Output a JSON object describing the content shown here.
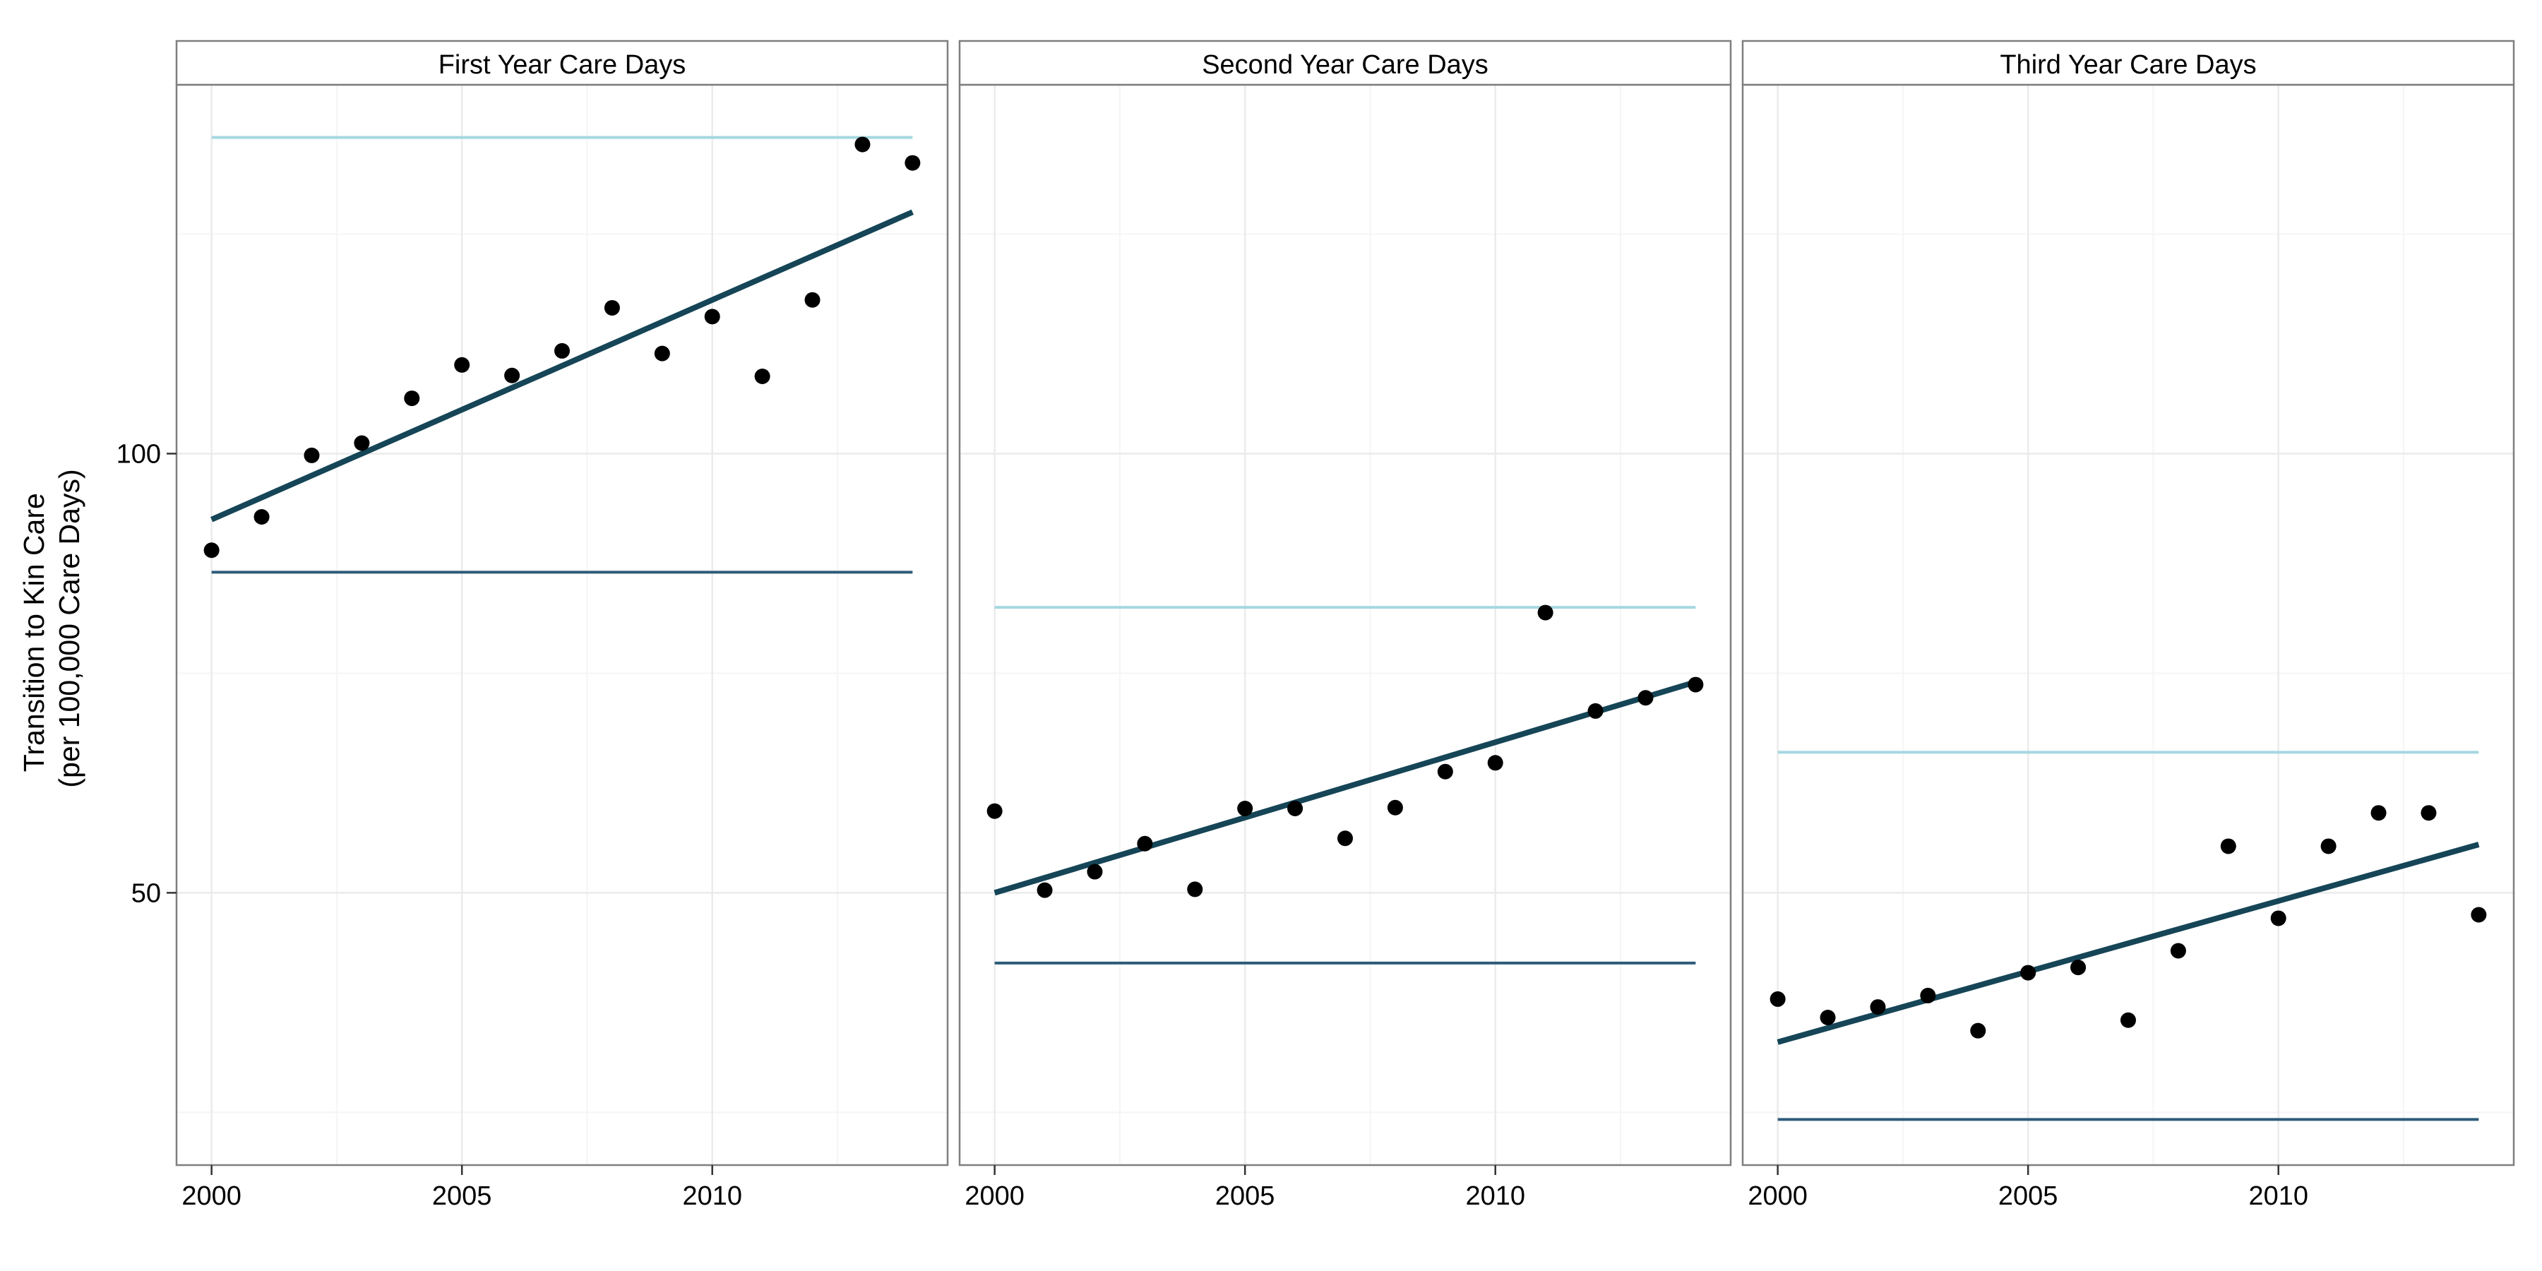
{
  "chart_data": {
    "type": "scatter",
    "ylabel_line1": "Transition to Kin Care",
    "ylabel_line2": "(per 100,000 Care Days)",
    "xlabel": "",
    "xlim": [
      1999.3,
      2014.7
    ],
    "ylim": [
      19,
      142
    ],
    "x_ticks": [
      2000,
      2005,
      2010
    ],
    "x_tick_labels": [
      "2000",
      "2005",
      "2010"
    ],
    "y_ticks": [
      50,
      100
    ],
    "y_tick_labels": [
      "50",
      "100"
    ],
    "grid": true,
    "colors": {
      "points": "#000000",
      "trend": "#154557",
      "upper_ref": "#A6D8E0",
      "lower_ref": "#2E5C7A",
      "grid": "#EBEBEB",
      "strip_bg": "#FFFFFF",
      "panel_border": "#7F7F7F"
    },
    "panels": [
      {
        "title": "First Year Care Days",
        "x": [
          2000,
          2001,
          2002,
          2003,
          2004,
          2005,
          2006,
          2007,
          2008,
          2009,
          2010,
          2011,
          2012,
          2013,
          2014
        ],
        "y": [
          89,
          92.8,
          99.8,
          101.2,
          106.3,
          110.1,
          108.9,
          111.7,
          116.6,
          111.4,
          115.6,
          108.8,
          117.5,
          135.2,
          133.1
        ],
        "trend": {
          "x": [
            2000,
            2014
          ],
          "y": [
            92.5,
            127.5
          ]
        },
        "upper_ref": {
          "x": [
            2000,
            2014
          ],
          "y": 136
        },
        "lower_ref": {
          "x": [
            2000,
            2014
          ],
          "y": 86.5
        }
      },
      {
        "title": "Second Year Care Days",
        "x": [
          2000,
          2001,
          2002,
          2003,
          2004,
          2005,
          2006,
          2007,
          2008,
          2009,
          2010,
          2011,
          2012,
          2013,
          2014
        ],
        "y": [
          59.3,
          50.3,
          52.4,
          55.6,
          50.4,
          59.6,
          59.6,
          56.2,
          59.7,
          63.8,
          64.8,
          81.9,
          70.7,
          72.2,
          73.7
        ],
        "trend": {
          "x": [
            2000,
            2014
          ],
          "y": [
            50,
            74
          ]
        },
        "upper_ref": {
          "x": [
            2000,
            2014
          ],
          "y": 82.5
        },
        "lower_ref": {
          "x": [
            2000,
            2014
          ],
          "y": 42
        }
      },
      {
        "title": "Third Year Care Days",
        "x": [
          2000,
          2001,
          2002,
          2003,
          2004,
          2005,
          2006,
          2007,
          2008,
          2009,
          2010,
          2011,
          2012,
          2013,
          2014
        ],
        "y": [
          37.9,
          35.8,
          37,
          38.3,
          34.3,
          40.9,
          41.5,
          35.5,
          43.4,
          55.3,
          47.1,
          55.3,
          59.1,
          59.1,
          47.5
        ],
        "trend": {
          "x": [
            2000,
            2014
          ],
          "y": [
            33,
            55.5
          ]
        },
        "upper_ref": {
          "x": [
            2000,
            2014
          ],
          "y": 66
        },
        "lower_ref": {
          "x": [
            2000,
            2014
          ],
          "y": 24.2
        }
      }
    ]
  }
}
